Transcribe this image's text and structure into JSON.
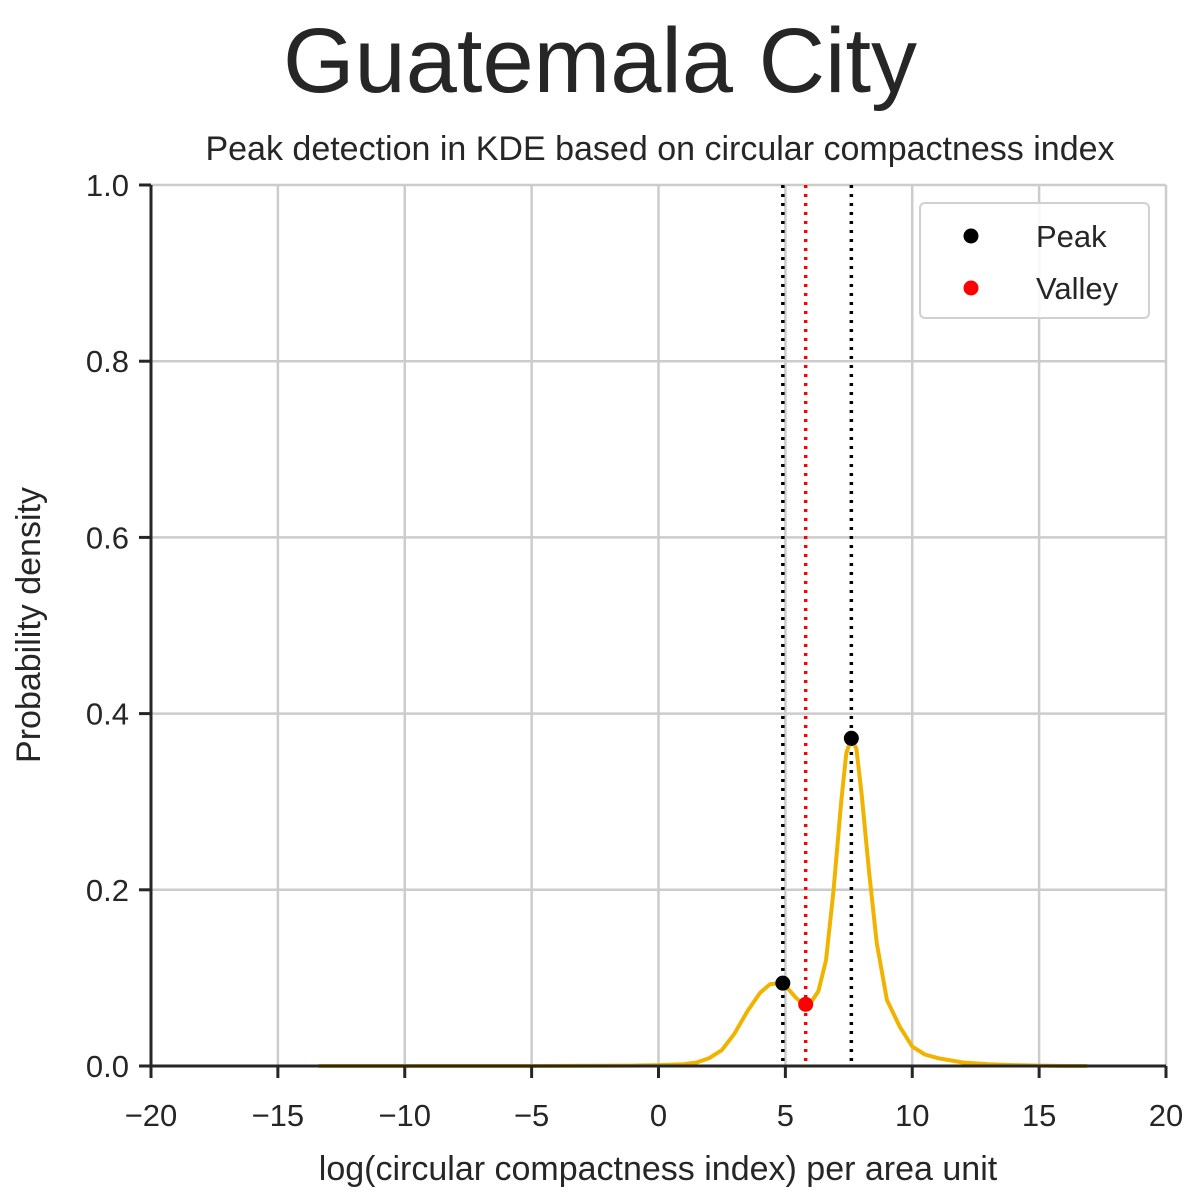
{
  "figure": {
    "suptitle": "Guatemala City"
  },
  "chart_data": {
    "type": "line",
    "title": "Peak detection in KDE based on circular compactness index",
    "xlabel": "log(circular compactness index) per area unit",
    "ylabel": "Probability density",
    "xlim": [
      -20,
      20
    ],
    "ylim": [
      0,
      1.0
    ],
    "xticks": [
      -20,
      -15,
      -10,
      -5,
      0,
      5,
      10,
      15,
      20
    ],
    "xtick_labels": [
      "−20",
      "−15",
      "−10",
      "−5",
      "0",
      "5",
      "10",
      "15",
      "20"
    ],
    "yticks": [
      0.0,
      0.2,
      0.4,
      0.6,
      0.8,
      1.0
    ],
    "ytick_labels": [
      "0.0",
      "0.2",
      "0.4",
      "0.6",
      "0.8",
      "1.0"
    ],
    "grid": true,
    "legend_position": "top-right",
    "series": [
      {
        "role": "kde",
        "color": "#f0b400",
        "x": [
          -13.4,
          -5,
          -1,
          0,
          1,
          1.5,
          2,
          2.5,
          3,
          3.5,
          4,
          4.4,
          4.8,
          5.1,
          5.4,
          5.7,
          5.85,
          6.0,
          6.3,
          6.6,
          6.9,
          7.2,
          7.4,
          7.6,
          7.8,
          8.0,
          8.3,
          8.6,
          9.0,
          9.5,
          10.0,
          10.5,
          11.0,
          12.0,
          13.0,
          14.0,
          15.0,
          16.0,
          16.9
        ],
        "y": [
          0.0,
          0.0,
          0.0005,
          0.001,
          0.002,
          0.004,
          0.009,
          0.018,
          0.037,
          0.062,
          0.083,
          0.093,
          0.094,
          0.088,
          0.078,
          0.07,
          0.07,
          0.072,
          0.085,
          0.12,
          0.2,
          0.3,
          0.355,
          0.372,
          0.36,
          0.31,
          0.22,
          0.14,
          0.075,
          0.045,
          0.022,
          0.013,
          0.009,
          0.004,
          0.002,
          0.001,
          0.0005,
          0.0,
          0.0
        ]
      }
    ],
    "peaks": {
      "label": "Peak",
      "color": "#000000",
      "points": [
        {
          "x": 4.9,
          "y": 0.094
        },
        {
          "x": 7.6,
          "y": 0.372
        }
      ]
    },
    "valleys": {
      "label": "Valley",
      "color": "#ff0000",
      "points": [
        {
          "x": 5.8,
          "y": 0.07
        }
      ]
    },
    "vlines": [
      {
        "x": 4.9,
        "color": "#000000",
        "style": "dotted"
      },
      {
        "x": 5.8,
        "color": "#ff0000",
        "style": "dotted"
      },
      {
        "x": 7.6,
        "color": "#000000",
        "style": "dotted"
      }
    ],
    "legend": [
      {
        "label": "Peak",
        "color": "#000000"
      },
      {
        "label": "Valley",
        "color": "#ff0000"
      }
    ]
  }
}
